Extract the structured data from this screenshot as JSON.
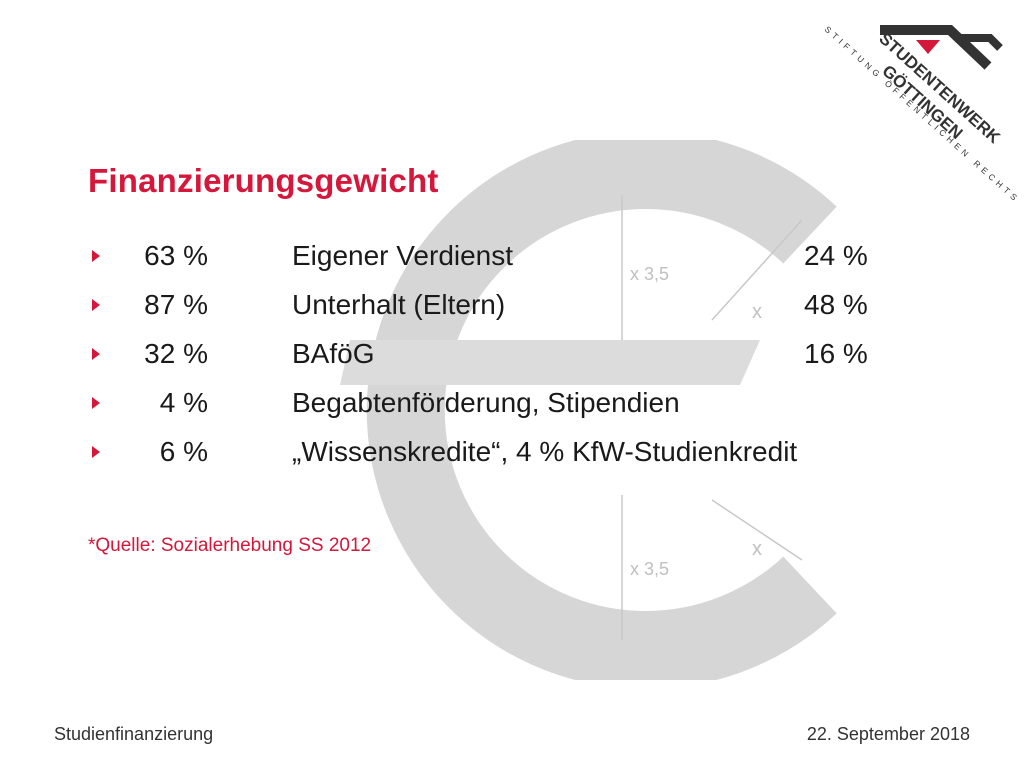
{
  "title": "Finanzierungsgewicht",
  "rows": [
    {
      "pct": "63 %",
      "label": "Eigener Verdienst",
      "value": "24 %"
    },
    {
      "pct": "87 %",
      "label": "Unterhalt (Eltern)",
      "value": "48 %"
    },
    {
      "pct": "32 %",
      "label": "BAföG",
      "value": "16 %"
    },
    {
      "pct": "4 %",
      "label": "Begabtenförderung, Stipendien",
      "value": ""
    },
    {
      "pct": "6 %",
      "label": "„Wissenskredite“, 4 % KfW-Studienkredit",
      "value": ""
    }
  ],
  "source": "*Quelle: Sozialerhebung SS 2012",
  "footer": {
    "left": "Studienfinanzierung",
    "right": "22. September 2018"
  },
  "logo": {
    "line1": "STUDENTENWERK",
    "line2": "GÖTTINGEN",
    "line3": "STIFTUNG ÖFFENTLICHEN RECHTS"
  },
  "watermark": {
    "dim_top": "x 3,5",
    "dim_bottom": "x 3,5",
    "dim_x1": "x",
    "dim_x2": "x"
  },
  "colors": {
    "accent": "#d4173a",
    "text": "#1a1a1a",
    "watermark": "#c0c0c0"
  }
}
